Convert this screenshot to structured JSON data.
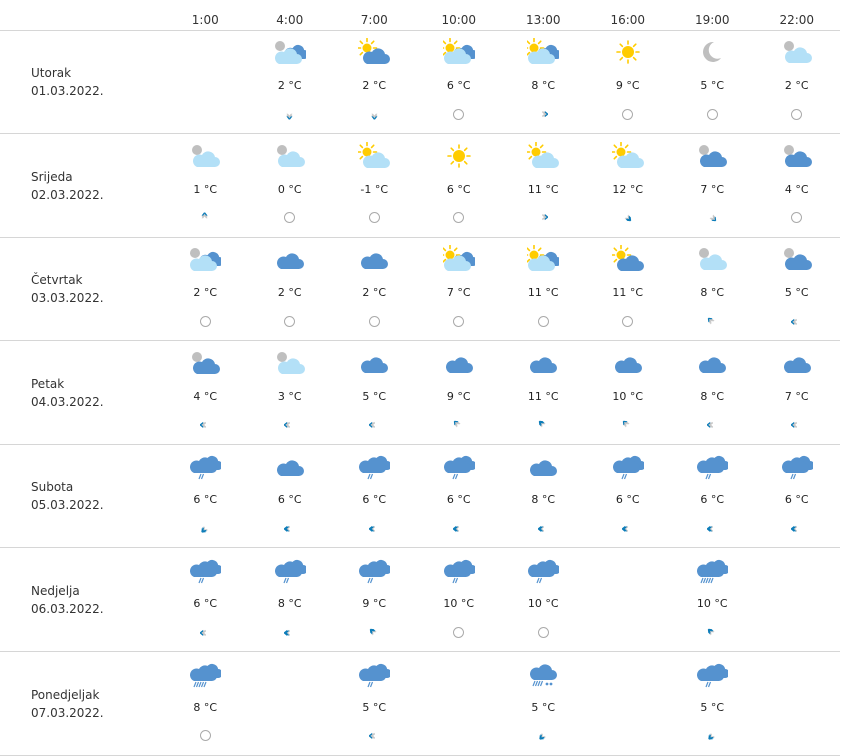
{
  "hours": [
    "1:00",
    "4:00",
    "7:00",
    "10:00",
    "13:00",
    "16:00",
    "19:00",
    "22:00"
  ],
  "colors": {
    "sun": "#ffcc00",
    "cloud_light": "#b3e0f7",
    "cloud_dark": "#5592cf",
    "moon": "#bfbfbf",
    "wind_active": "#0a7bb8",
    "wind_inactive": "#c8c8c8",
    "divider": "#d6d6d6"
  },
  "days": [
    {
      "name": "Utorak",
      "date": "01.03.2022.",
      "slots": [
        null,
        {
          "icon": "moon-clouds",
          "temp": "2 °C",
          "wind": {
            "dir": "down",
            "strength": 1
          }
        },
        {
          "icon": "sun-dark-cloud",
          "temp": "2 °C",
          "wind": {
            "dir": "down",
            "strength": 1
          }
        },
        {
          "icon": "sun-clouds",
          "temp": "6 °C",
          "wind": {
            "dir": "calm",
            "strength": 0
          }
        },
        {
          "icon": "sun-clouds",
          "temp": "8 °C",
          "wind": {
            "dir": "right",
            "strength": 1
          }
        },
        {
          "icon": "sun",
          "temp": "9 °C",
          "wind": {
            "dir": "calm",
            "strength": 0
          }
        },
        {
          "icon": "moon",
          "temp": "5 °C",
          "wind": {
            "dir": "calm",
            "strength": 0
          }
        },
        {
          "icon": "moon-light-cloud",
          "temp": "2 °C",
          "wind": {
            "dir": "calm",
            "strength": 0
          }
        }
      ]
    },
    {
      "name": "Srijeda",
      "date": "02.03.2022.",
      "slots": [
        {
          "icon": "moon-light-cloud",
          "temp": "1 °C",
          "wind": {
            "dir": "up",
            "strength": 1
          }
        },
        {
          "icon": "moon-light-cloud",
          "temp": "0 °C",
          "wind": {
            "dir": "calm",
            "strength": 0
          }
        },
        {
          "icon": "sun-light-cloud",
          "temp": "-1 °C",
          "wind": {
            "dir": "calm",
            "strength": 0
          }
        },
        {
          "icon": "sun",
          "temp": "6 °C",
          "wind": {
            "dir": "calm",
            "strength": 0
          }
        },
        {
          "icon": "sun-light-cloud",
          "temp": "11 °C",
          "wind": {
            "dir": "right",
            "strength": 1
          }
        },
        {
          "icon": "sun-light-cloud",
          "temp": "12 °C",
          "wind": {
            "dir": "down-right",
            "strength": 2
          }
        },
        {
          "icon": "moon-dark-cloud",
          "temp": "7 °C",
          "wind": {
            "dir": "down-right",
            "strength": 1
          }
        },
        {
          "icon": "moon-dark-cloud",
          "temp": "4 °C",
          "wind": {
            "dir": "calm",
            "strength": 0
          }
        }
      ]
    },
    {
      "name": "Četvrtak",
      "date": "03.03.2022.",
      "slots": [
        {
          "icon": "moon-clouds",
          "temp": "2 °C",
          "wind": {
            "dir": "calm",
            "strength": 0
          }
        },
        {
          "icon": "cloud",
          "temp": "2 °C",
          "wind": {
            "dir": "calm",
            "strength": 0
          }
        },
        {
          "icon": "cloud",
          "temp": "2 °C",
          "wind": {
            "dir": "calm",
            "strength": 0
          }
        },
        {
          "icon": "sun-clouds",
          "temp": "7 °C",
          "wind": {
            "dir": "calm",
            "strength": 0
          }
        },
        {
          "icon": "sun-clouds",
          "temp": "11 °C",
          "wind": {
            "dir": "calm",
            "strength": 0
          }
        },
        {
          "icon": "sun-dark-cloud",
          "temp": "11 °C",
          "wind": {
            "dir": "calm",
            "strength": 0
          }
        },
        {
          "icon": "moon-light-cloud",
          "temp": "8 °C",
          "wind": {
            "dir": "up-left",
            "strength": 1
          }
        },
        {
          "icon": "moon-dark-cloud",
          "temp": "5 °C",
          "wind": {
            "dir": "left",
            "strength": 1
          }
        }
      ]
    },
    {
      "name": "Petak",
      "date": "04.03.2022.",
      "slots": [
        {
          "icon": "moon-dark-cloud",
          "temp": "4 °C",
          "wind": {
            "dir": "left",
            "strength": 1
          }
        },
        {
          "icon": "moon-light-cloud",
          "temp": "3 °C",
          "wind": {
            "dir": "left",
            "strength": 1
          }
        },
        {
          "icon": "cloud",
          "temp": "5 °C",
          "wind": {
            "dir": "left",
            "strength": 1
          }
        },
        {
          "icon": "cloud",
          "temp": "9 °C",
          "wind": {
            "dir": "up-left",
            "strength": 1
          }
        },
        {
          "icon": "cloud",
          "temp": "11 °C",
          "wind": {
            "dir": "up-left",
            "strength": 2
          }
        },
        {
          "icon": "cloud",
          "temp": "10 °C",
          "wind": {
            "dir": "up-left",
            "strength": 1
          }
        },
        {
          "icon": "cloud",
          "temp": "8 °C",
          "wind": {
            "dir": "left",
            "strength": 1
          }
        },
        {
          "icon": "cloud",
          "temp": "7 °C",
          "wind": {
            "dir": "left",
            "strength": 1
          }
        }
      ]
    },
    {
      "name": "Subota",
      "date": "05.03.2022.",
      "slots": [
        {
          "icon": "rain",
          "temp": "6 °C",
          "wind": {
            "dir": "down-left",
            "strength": 2
          }
        },
        {
          "icon": "cloud",
          "temp": "6 °C",
          "wind": {
            "dir": "left",
            "strength": 2
          }
        },
        {
          "icon": "rain",
          "temp": "6 °C",
          "wind": {
            "dir": "left",
            "strength": 2
          }
        },
        {
          "icon": "rain",
          "temp": "6 °C",
          "wind": {
            "dir": "left",
            "strength": 2
          }
        },
        {
          "icon": "cloud",
          "temp": "8 °C",
          "wind": {
            "dir": "left",
            "strength": 2
          }
        },
        {
          "icon": "rain",
          "temp": "6 °C",
          "wind": {
            "dir": "left",
            "strength": 2
          }
        },
        {
          "icon": "rain",
          "temp": "6 °C",
          "wind": {
            "dir": "left",
            "strength": 2
          }
        },
        {
          "icon": "rain",
          "temp": "6 °C",
          "wind": {
            "dir": "left",
            "strength": 2
          }
        }
      ]
    },
    {
      "name": "Nedjelja",
      "date": "06.03.2022.",
      "slots": [
        {
          "icon": "rain",
          "temp": "6 °C",
          "wind": {
            "dir": "left",
            "strength": 1
          }
        },
        {
          "icon": "rain",
          "temp": "8 °C",
          "wind": {
            "dir": "left",
            "strength": 2
          }
        },
        {
          "icon": "rain",
          "temp": "9 °C",
          "wind": {
            "dir": "up-left",
            "strength": 2
          }
        },
        {
          "icon": "rain",
          "temp": "10 °C",
          "wind": {
            "dir": "calm",
            "strength": 0
          }
        },
        {
          "icon": "rain",
          "temp": "10 °C",
          "wind": {
            "dir": "calm",
            "strength": 0
          }
        },
        null,
        {
          "icon": "heavy-rain",
          "temp": "10 °C",
          "wind": {
            "dir": "up-left",
            "strength": 2
          }
        },
        null
      ]
    },
    {
      "name": "Ponedjeljak",
      "date": "07.03.2022.",
      "slots": [
        {
          "icon": "heavy-rain",
          "temp": "8 °C",
          "wind": {
            "dir": "calm",
            "strength": 0
          }
        },
        null,
        {
          "icon": "rain",
          "temp": "5 °C",
          "wind": {
            "dir": "left",
            "strength": 1
          }
        },
        null,
        {
          "icon": "sleet",
          "temp": "5 °C",
          "wind": {
            "dir": "down-left",
            "strength": 2
          }
        },
        null,
        {
          "icon": "rain",
          "temp": "5 °C",
          "wind": {
            "dir": "down-left",
            "strength": 2
          }
        },
        null
      ]
    }
  ]
}
